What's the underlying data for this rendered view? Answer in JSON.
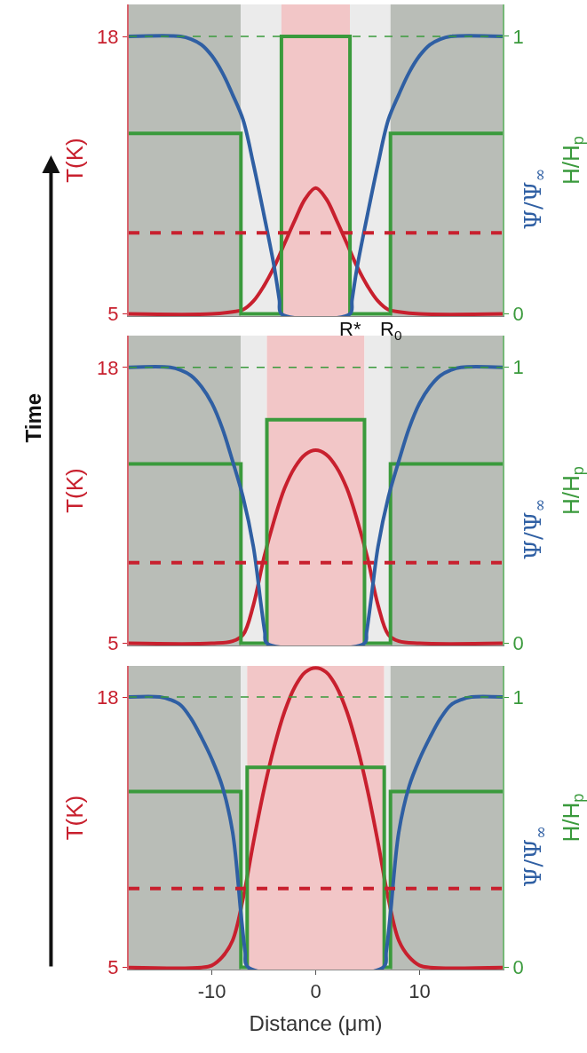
{
  "chart_data": [
    {
      "type": "line",
      "xlim": [
        -18,
        18
      ],
      "xticks": [
        -10,
        0,
        10
      ],
      "tick_labels": "y",
      "ylabel": "T(K)",
      "y2label": "H/H$_{p}$",
      "y3label": "Ψ/Ψ$_{∞}$",
      "ylim": [
        4.9,
        19.5
      ],
      "yticks": [
        5,
        18
      ],
      "y2lim": [
        -0.008,
        1.115
      ],
      "y2ticks": [
        0,
        1
      ],
      "series": [
        {
          "color": "#c8202e",
          "x": [
            -18,
            -10,
            -8,
            -7,
            -6,
            -5,
            -4,
            -3,
            -2,
            -1,
            0,
            1,
            2,
            3,
            4,
            5,
            6,
            7,
            8,
            10,
            18
          ],
          "values": [
            5,
            5,
            5.1,
            5.2,
            5.6,
            6.3,
            7.2,
            8.3,
            9.4,
            10.4,
            10.9,
            10.4,
            9.4,
            8.3,
            7.2,
            6.3,
            5.6,
            5.2,
            5.1,
            5,
            5
          ]
        },
        {
          "type": "step",
          "axis": "y2",
          "color": "#3a9a3c",
          "x": [
            -18,
            -7.2,
            -3.3,
            3.3,
            7.2,
            18
          ],
          "values": [
            0.65,
            0,
            1,
            0,
            0.65,
            0.65
          ]
        },
        {
          "axis": "y2",
          "color": "#2f5fa3",
          "x": [
            -18,
            -13,
            -12,
            -11,
            -10,
            -9,
            -8,
            -7,
            -6,
            -5,
            -4,
            -3.5,
            -3.3,
            3.3,
            3.5,
            4,
            5,
            6,
            7,
            8,
            9,
            10,
            11,
            12,
            13,
            18
          ],
          "values": [
            1,
            1,
            0.99,
            0.97,
            0.93,
            0.87,
            0.79,
            0.7,
            0.54,
            0.36,
            0.17,
            0.05,
            0,
            0,
            0.05,
            0.17,
            0.36,
            0.54,
            0.7,
            0.79,
            0.87,
            0.93,
            0.97,
            0.99,
            1,
            1
          ]
        }
      ],
      "ref_lines": [
        {
          "axis": "y",
          "value": 8.8,
          "color": "#c8202e",
          "line_style": "dashed"
        },
        {
          "axis": "y2",
          "value": 1,
          "color": "#3a9a3c",
          "line_style": "dashed"
        }
      ],
      "bands": [
        {
          "axis": "x",
          "from": -18,
          "to": -7.2,
          "color": "#b9bdb7"
        },
        {
          "axis": "x",
          "from": -7.2,
          "to": -3.3,
          "color": "#ebebeb"
        },
        {
          "axis": "x",
          "from": -3.3,
          "to": 3.3,
          "color": "#f2c6c7"
        },
        {
          "axis": "x",
          "from": 3.3,
          "to": 7.2,
          "color": "#ebebeb"
        },
        {
          "axis": "x",
          "from": 7.2,
          "to": 18,
          "color": "#b9bdb7"
        }
      ],
      "annotations": [
        "Time",
        {
          "text": "R*",
          "x": 3.3,
          "y": 4.9
        },
        {
          "text": "R$_{0}$",
          "x": 7.2,
          "y": 4.9
        }
      ]
    },
    {
      "type": "line",
      "xlim": [
        -18,
        18
      ],
      "xticks": [
        -10,
        0,
        10
      ],
      "tick_labels": "y",
      "ylabel": "T(K)",
      "y2label": "H/H$_{p}$",
      "y3label": "Ψ/Ψ$_{∞}$",
      "ylim": [
        4.9,
        19.5
      ],
      "yticks": [
        5,
        18
      ],
      "y2lim": [
        -0.008,
        1.115
      ],
      "y2ticks": [
        0,
        1
      ],
      "series": [
        {
          "color": "#c8202e",
          "x": [
            -18,
            -10,
            -8,
            -7,
            -6,
            -5,
            -4,
            -3,
            -2,
            -1,
            0,
            1,
            2,
            3,
            4,
            5,
            6,
            7,
            8,
            10,
            18
          ],
          "values": [
            5,
            5,
            5.1,
            5.4,
            6.8,
            9.0,
            10.8,
            12.3,
            13.3,
            13.9,
            14.1,
            13.9,
            13.3,
            12.3,
            10.8,
            9.0,
            6.8,
            5.4,
            5.1,
            5,
            5
          ]
        },
        {
          "type": "step",
          "axis": "y2",
          "color": "#3a9a3c",
          "x": [
            -18,
            -7.2,
            -4.7,
            4.7,
            7.2,
            18
          ],
          "values": [
            0.65,
            0,
            0.81,
            0,
            0.65,
            0.65
          ]
        },
        {
          "axis": "y2",
          "color": "#2f5fa3",
          "x": [
            -18,
            -14,
            -13,
            -12,
            -11,
            -10,
            -9,
            -8,
            -7,
            -6,
            -5.3,
            -4.9,
            -4.7,
            4.7,
            4.9,
            5.3,
            6,
            7,
            8,
            9,
            10,
            11,
            12,
            13,
            14,
            18
          ],
          "values": [
            1,
            1,
            0.99,
            0.97,
            0.93,
            0.87,
            0.78,
            0.66,
            0.53,
            0.35,
            0.15,
            0.04,
            0,
            0,
            0.04,
            0.15,
            0.35,
            0.53,
            0.66,
            0.78,
            0.87,
            0.93,
            0.97,
            0.99,
            1,
            1
          ]
        }
      ],
      "ref_lines": [
        {
          "axis": "y",
          "value": 8.8,
          "color": "#c8202e",
          "line_style": "dashed"
        },
        {
          "axis": "y2",
          "value": 1,
          "color": "#3a9a3c",
          "line_style": "dashed"
        }
      ],
      "bands": [
        {
          "axis": "x",
          "from": -18,
          "to": -7.2,
          "color": "#b9bdb7"
        },
        {
          "axis": "x",
          "from": -7.2,
          "to": -4.7,
          "color": "#ebebeb"
        },
        {
          "axis": "x",
          "from": -4.7,
          "to": 4.7,
          "color": "#f2c6c7"
        },
        {
          "axis": "x",
          "from": 4.7,
          "to": 7.2,
          "color": "#ebebeb"
        },
        {
          "axis": "x",
          "from": 7.2,
          "to": 18,
          "color": "#b9bdb7"
        }
      ]
    },
    {
      "type": "line",
      "xlim": [
        -18,
        18
      ],
      "xticks": [
        -10,
        0,
        10
      ],
      "xlabel": "Distance (μm)",
      "ylabel": "T(K)",
      "y2label": "H/H$_{p}$",
      "y3label": "Ψ/Ψ$_{∞}$",
      "ylim": [
        4.9,
        19.5
      ],
      "yticks": [
        5,
        18
      ],
      "y2lim": [
        -0.008,
        1.115
      ],
      "y2ticks": [
        0,
        1
      ],
      "series": [
        {
          "color": "#c8202e",
          "x": [
            -18,
            -11,
            -10,
            -9,
            -8,
            -7,
            -6,
            -5,
            -4,
            -3,
            -2,
            -1,
            0,
            1,
            2,
            3,
            4,
            5,
            6,
            7,
            8,
            9,
            10,
            11,
            18
          ],
          "values": [
            5,
            5,
            5.1,
            5.5,
            6.3,
            8.3,
            11,
            13.5,
            15.6,
            17.3,
            18.5,
            19.2,
            19.4,
            19.2,
            18.5,
            17.3,
            15.6,
            13.5,
            11,
            8.3,
            6.3,
            5.5,
            5.1,
            5,
            5
          ]
        },
        {
          "type": "step",
          "axis": "y2",
          "color": "#3a9a3c",
          "x": [
            -18,
            -7.2,
            -6.6,
            6.6,
            7.2,
            18
          ],
          "values": [
            0.65,
            0,
            0.74,
            0,
            0.65,
            0.65
          ]
        },
        {
          "axis": "y2",
          "color": "#2f5fa3",
          "x": [
            -18,
            -15,
            -14,
            -13,
            -12,
            -11,
            -10,
            -9,
            -8,
            -7.2,
            -6.8,
            -6.5,
            6.5,
            6.8,
            7.2,
            8,
            9,
            10,
            11,
            12,
            13,
            14,
            15,
            18
          ],
          "values": [
            1,
            1,
            0.99,
            0.97,
            0.92,
            0.85,
            0.77,
            0.67,
            0.5,
            0.2,
            0.06,
            0,
            0,
            0.06,
            0.2,
            0.5,
            0.67,
            0.77,
            0.85,
            0.92,
            0.97,
            0.99,
            1,
            1
          ]
        }
      ],
      "ref_lines": [
        {
          "axis": "y",
          "value": 8.8,
          "color": "#c8202e",
          "line_style": "dashed"
        },
        {
          "axis": "y2",
          "value": 1,
          "color": "#3a9a3c",
          "line_style": "dashed"
        }
      ],
      "bands": [
        {
          "axis": "x",
          "from": -18,
          "to": -7.2,
          "color": "#b9bdb7"
        },
        {
          "axis": "x",
          "from": -7.2,
          "to": -6.6,
          "color": "#ebebeb"
        },
        {
          "axis": "x",
          "from": -6.6,
          "to": 6.6,
          "color": "#f2c6c7"
        },
        {
          "axis": "x",
          "from": 6.6,
          "to": 7.2,
          "color": "#ebebeb"
        },
        {
          "axis": "x",
          "from": 7.2,
          "to": 18,
          "color": "#b9bdb7"
        }
      ]
    }
  ]
}
